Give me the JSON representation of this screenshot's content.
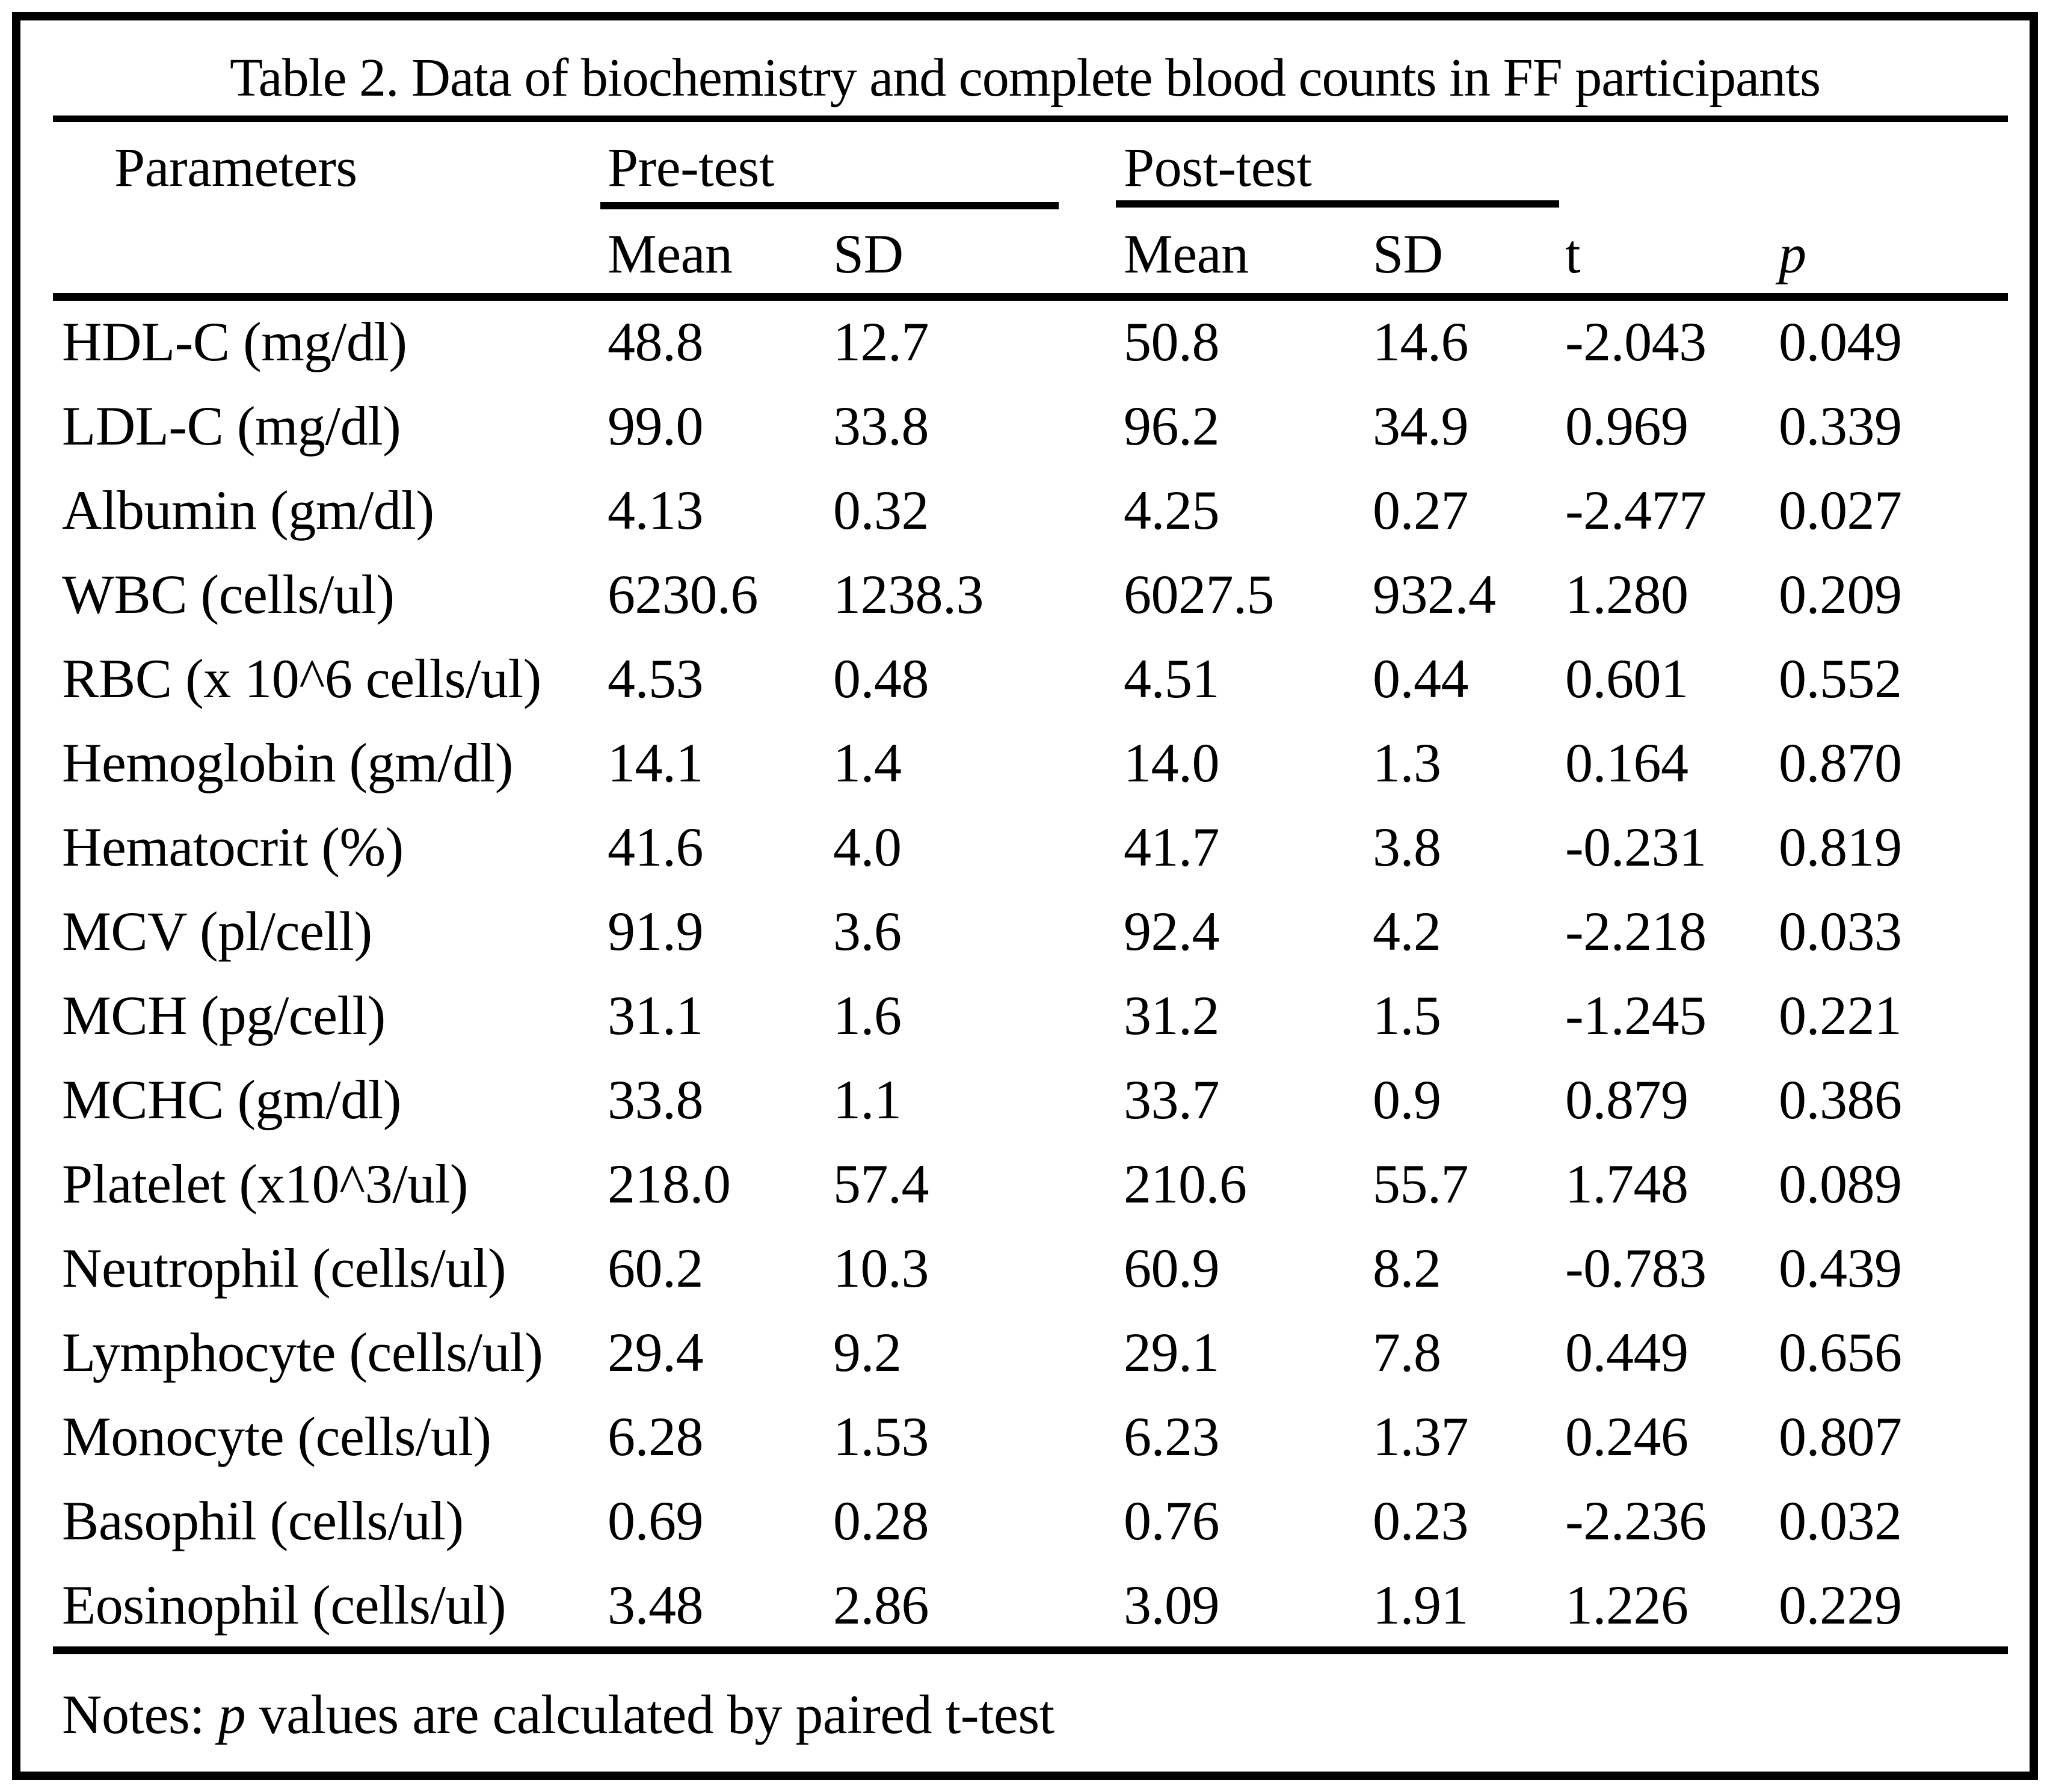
{
  "table": {
    "title": "Table 2. Data of biochemistry and complete blood counts in FF participants",
    "headers": {
      "parameters": "Parameters",
      "pretest_group": "Pre-test",
      "posttest_group": "Post-test",
      "pre_mean": "Mean",
      "pre_sd": "SD",
      "post_mean": "Mean",
      "post_sd": "SD",
      "t": "t",
      "p": "p"
    },
    "rows": [
      {
        "parameter": "HDL-C (mg/dl)",
        "pre_mean": "48.8",
        "pre_sd": "12.7",
        "post_mean": "50.8",
        "post_sd": "14.6",
        "t": "-2.043",
        "p": "0.049"
      },
      {
        "parameter": "LDL-C (mg/dl)",
        "pre_mean": "99.0",
        "pre_sd": "33.8",
        "post_mean": "96.2",
        "post_sd": "34.9",
        "t": "0.969",
        "p": "0.339"
      },
      {
        "parameter": "Albumin (gm/dl)",
        "pre_mean": "4.13",
        "pre_sd": "0.32",
        "post_mean": "4.25",
        "post_sd": "0.27",
        "t": "-2.477",
        "p": "0.027"
      },
      {
        "parameter": "WBC (cells/ul)",
        "pre_mean": "6230.6",
        "pre_sd": "1238.3",
        "post_mean": "6027.5",
        "post_sd": "932.4",
        "t": "1.280",
        "p": "0.209"
      },
      {
        "parameter": "RBC (x 10^6 cells/ul)",
        "pre_mean": "4.53",
        "pre_sd": "0.48",
        "post_mean": "4.51",
        "post_sd": "0.44",
        "t": "0.601",
        "p": "0.552"
      },
      {
        "parameter": "Hemoglobin (gm/dl)",
        "pre_mean": "14.1",
        "pre_sd": "1.4",
        "post_mean": "14.0",
        "post_sd": "1.3",
        "t": "0.164",
        "p": "0.870"
      },
      {
        "parameter": "Hematocrit (%)",
        "pre_mean": "41.6",
        "pre_sd": "4.0",
        "post_mean": "41.7",
        "post_sd": "3.8",
        "t": "-0.231",
        "p": "0.819"
      },
      {
        "parameter": "MCV (pl/cell)",
        "pre_mean": "91.9",
        "pre_sd": "3.6",
        "post_mean": "92.4",
        "post_sd": "4.2",
        "t": "-2.218",
        "p": "0.033"
      },
      {
        "parameter": "MCH (pg/cell)",
        "pre_mean": "31.1",
        "pre_sd": "1.6",
        "post_mean": "31.2",
        "post_sd": "1.5",
        "t": "-1.245",
        "p": "0.221"
      },
      {
        "parameter": "MCHC (gm/dl)",
        "pre_mean": "33.8",
        "pre_sd": "1.1",
        "post_mean": "33.7",
        "post_sd": "0.9",
        "t": "0.879",
        "p": "0.386"
      },
      {
        "parameter": "Platelet (x10^3/ul)",
        "pre_mean": "218.0",
        "pre_sd": "57.4",
        "post_mean": "210.6",
        "post_sd": "55.7",
        "t": "1.748",
        "p": "0.089"
      },
      {
        "parameter": "Neutrophil (cells/ul)",
        "pre_mean": "60.2",
        "pre_sd": "10.3",
        "post_mean": "60.9",
        "post_sd": "8.2",
        "t": "-0.783",
        "p": "0.439"
      },
      {
        "parameter": "Lymphocyte (cells/ul)",
        "pre_mean": "29.4",
        "pre_sd": "9.2",
        "post_mean": "29.1",
        "post_sd": "7.8",
        "t": "0.449",
        "p": "0.656"
      },
      {
        "parameter": "Monocyte (cells/ul)",
        "pre_mean": "6.28",
        "pre_sd": "1.53",
        "post_mean": "6.23",
        "post_sd": "1.37",
        "t": "0.246",
        "p": "0.807"
      },
      {
        "parameter": "Basophil (cells/ul)",
        "pre_mean": "0.69",
        "pre_sd": "0.28",
        "post_mean": "0.76",
        "post_sd": "0.23",
        "t": "-2.236",
        "p": "0.032"
      },
      {
        "parameter": "Eosinophil (cells/ul)",
        "pre_mean": "3.48",
        "pre_sd": "2.86",
        "post_mean": "3.09",
        "post_sd": "1.91",
        "t": "1.226",
        "p": "0.229"
      }
    ],
    "notes": {
      "prefix": "Notes: ",
      "italic_p": "p",
      "suffix": " values are calculated by paired t-test"
    }
  }
}
